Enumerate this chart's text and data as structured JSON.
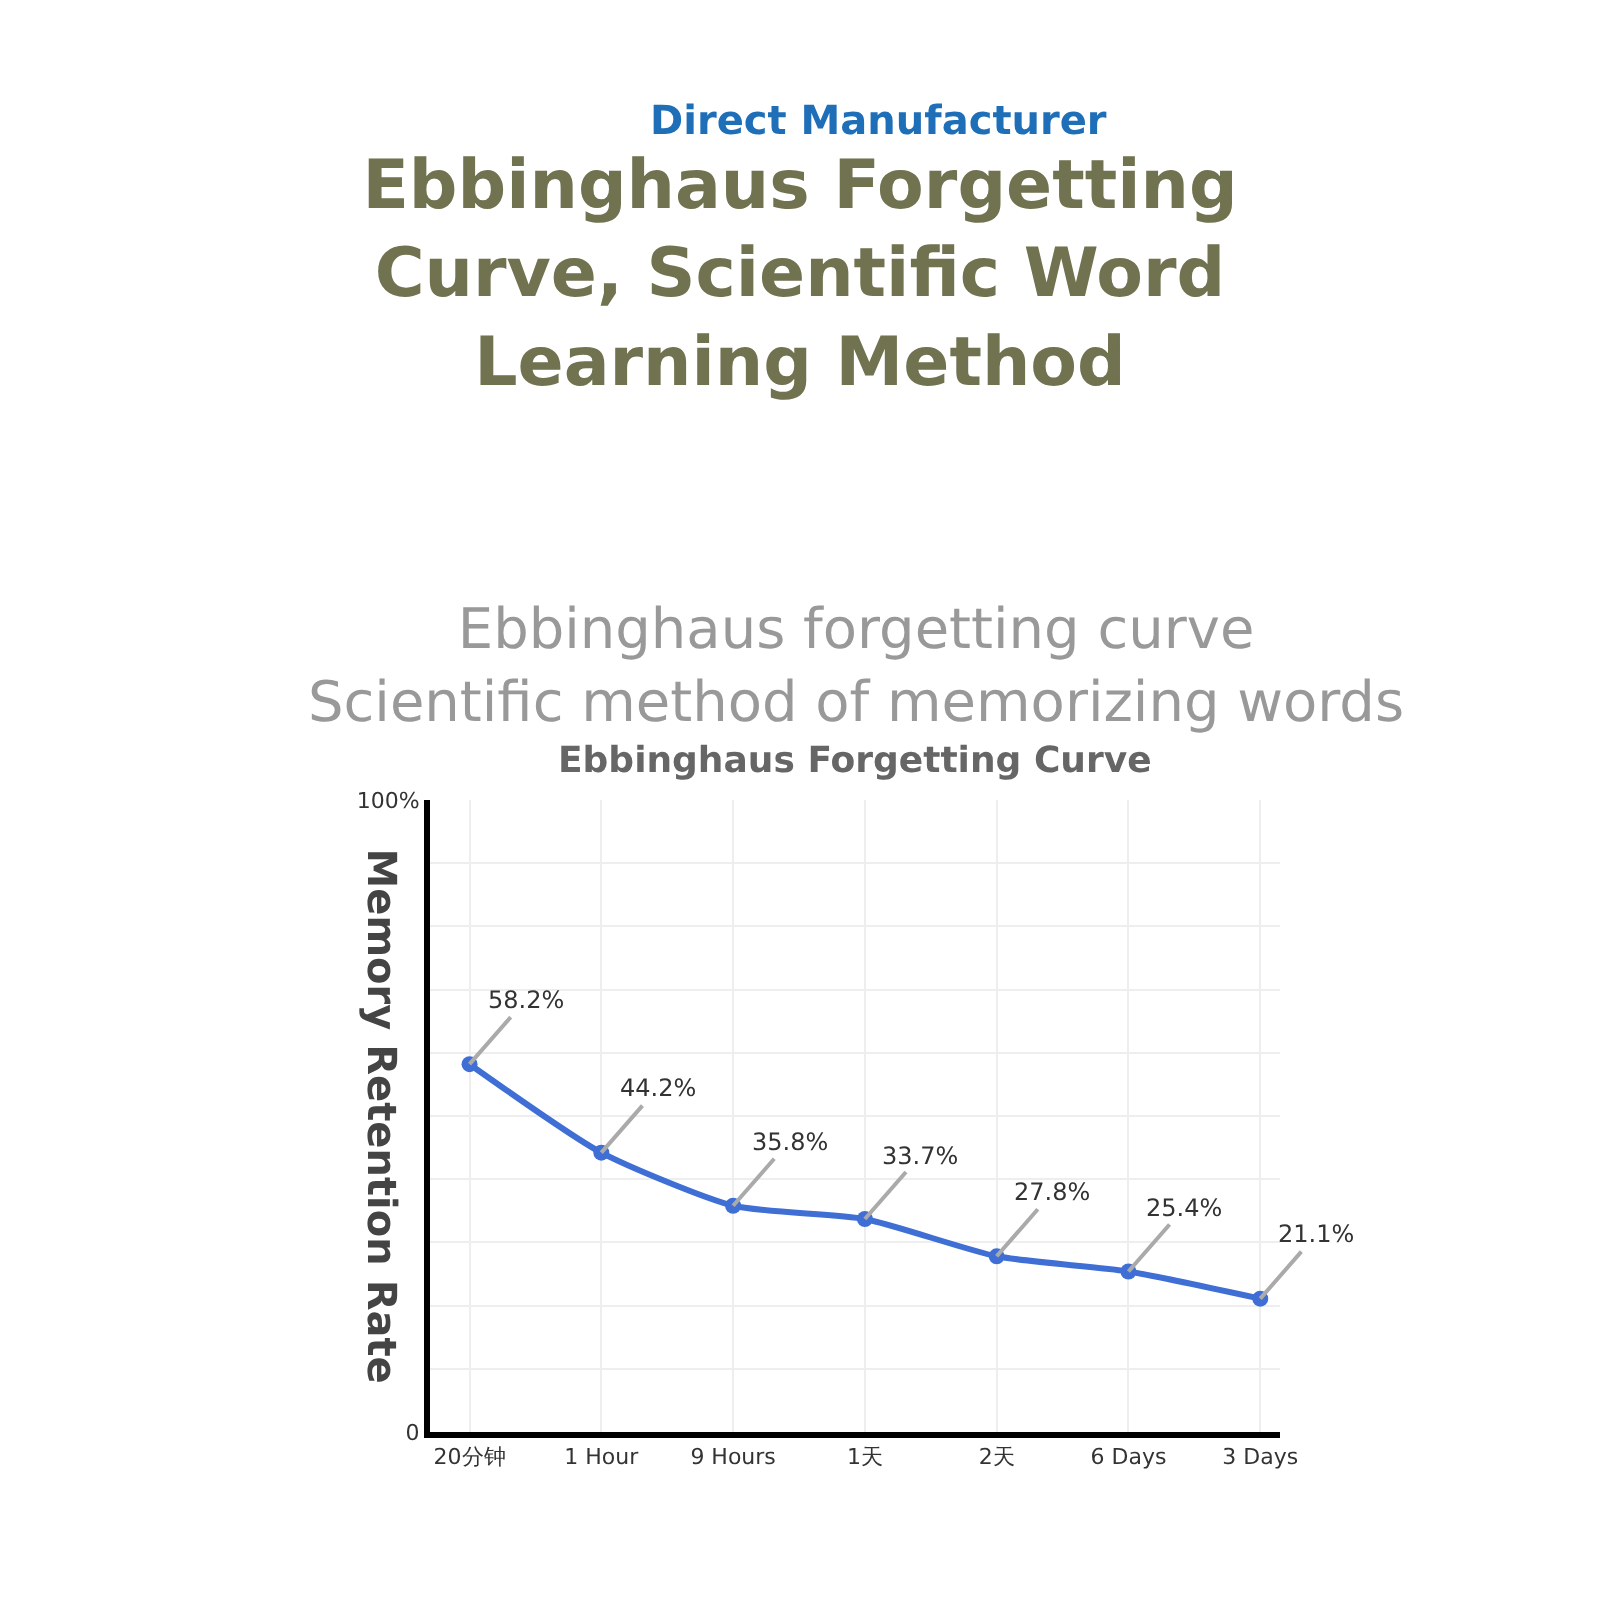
{
  "chart_data": {
    "type": "line",
    "title": "Ebbinghaus Forgetting Curve, Scientific Word Learning Method",
    "subtitle": "Ebbinghaus forgetting curve\nScientific method of memorizing words",
    "annotations": [
      "Direct Manufacturer",
      "Ebbinghaus Forgetting Curve"
    ],
    "ylabel": "Memory Retention Rate",
    "categories": [
      "20分钟",
      "1 Hour",
      "9 Hours",
      "1天",
      "2天",
      "6 Days",
      "3 Days"
    ],
    "series": [
      {
        "color": "#3f6fd4",
        "values": [
          58.2,
          44.2,
          35.8,
          33.7,
          27.8,
          25.4,
          21.1
        ],
        "value_labels": [
          "58.2%",
          "44.2%",
          "35.8%",
          "33.7%",
          "27.8%",
          "25.4%",
          "21.1%"
        ]
      }
    ],
    "ylim": [
      0,
      100
    ],
    "yticks": [
      0,
      {
        "value": 10,
        "label": null
      },
      {
        "value": 20,
        "label": null
      },
      {
        "value": 30,
        "label": null
      },
      {
        "value": 40,
        "label": null
      },
      {
        "value": 50,
        "label": null
      },
      {
        "value": 60,
        "label": null
      },
      {
        "value": 70,
        "label": null
      },
      {
        "value": 80,
        "label": null
      },
      {
        "value": 90,
        "label": null
      },
      {
        "value": 100,
        "label": "100%"
      }
    ],
    "grid": true,
    "marker": "circle",
    "line_style": "solid"
  }
}
